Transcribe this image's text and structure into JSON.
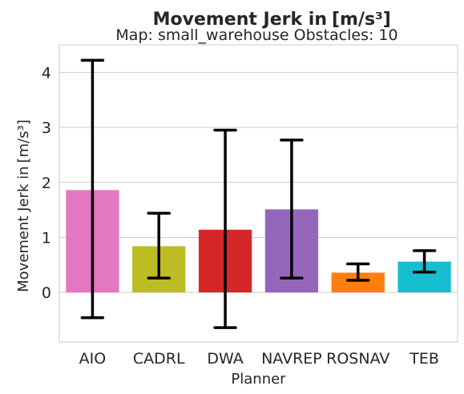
{
  "chart_data": {
    "type": "bar",
    "title": "Movement Jerk in",
    "title_unit": "[m/s³]",
    "subtitle": "Map: small_warehouse Obstacles: 10",
    "xlabel": "Planner",
    "ylabel": "Movement Jerk in",
    "ylabel_unit": "[m/s³]",
    "categories": [
      "AIO",
      "CADRL",
      "DWA",
      "NAVREP",
      "ROSNAV",
      "TEB"
    ],
    "values": [
      1.86,
      0.84,
      1.14,
      1.51,
      0.36,
      0.56
    ],
    "error_low": [
      -0.46,
      0.26,
      -0.64,
      0.26,
      0.22,
      0.37
    ],
    "error_high": [
      4.22,
      1.44,
      2.95,
      2.77,
      0.52,
      0.76
    ],
    "colors": [
      "#e377c2",
      "#bcbd22",
      "#d62728",
      "#9467bd",
      "#ff7f0e",
      "#17becf"
    ],
    "ylim": [
      -0.9,
      4.5
    ],
    "yticks": [
      0,
      1,
      2,
      3,
      4
    ],
    "grid": "horizontal",
    "legend": "none"
  }
}
